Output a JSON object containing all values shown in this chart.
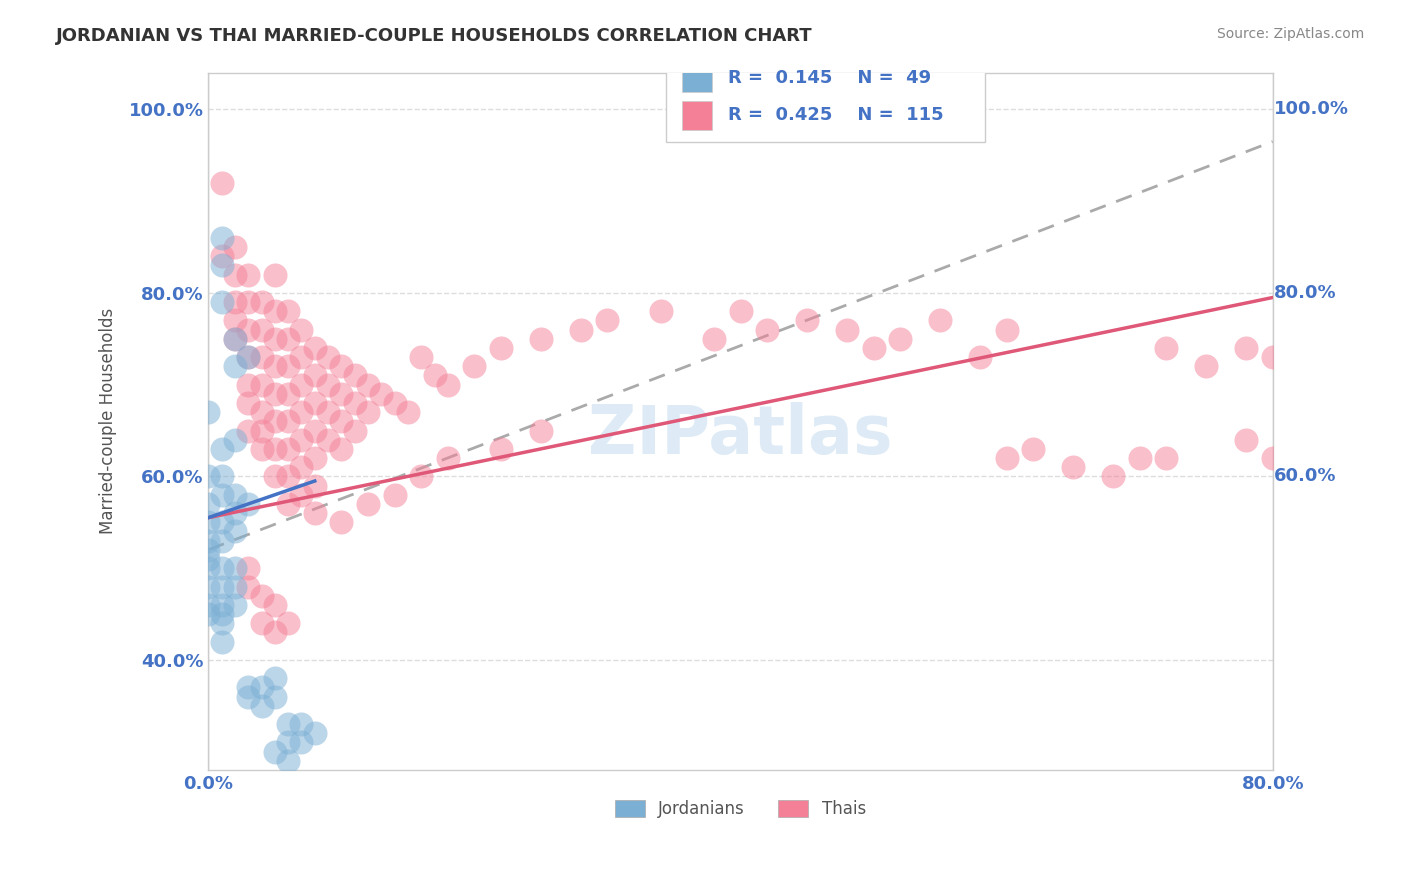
{
  "title": "JORDANIAN VS THAI MARRIED-COUPLE HOUSEHOLDS CORRELATION CHART",
  "source": "Source: ZipAtlas.com",
  "ylabel": "Married-couple Households",
  "x_min": 0.0,
  "x_max": 0.8,
  "y_min": 0.28,
  "y_max": 1.04,
  "x_ticks": [
    0.0,
    0.1,
    0.2,
    0.3,
    0.4,
    0.5,
    0.6,
    0.7,
    0.8
  ],
  "y_ticks": [
    0.4,
    0.6,
    0.8,
    1.0
  ],
  "y_tick_labels": [
    "40.0%",
    "60.0%",
    "80.0%",
    "100.0%"
  ],
  "legend_labels": [
    "Jordanians",
    "Thais"
  ],
  "jordanian_color": "#7bafd4",
  "thai_color": "#f48098",
  "jordanian_R": 0.145,
  "jordanian_N": 49,
  "thai_R": 0.425,
  "thai_N": 115,
  "jordanian_line_color": "#4472c4",
  "thai_line_color": "#e05878",
  "overall_line_color": "#aaaaaa",
  "watermark": "ZIPatlas",
  "background_color": "#ffffff",
  "grid_color": "#dddddd",
  "title_color": "#333333",
  "axis_label_color": "#555555",
  "tick_label_color": "#4472c4",
  "legend_R_color": "#4472c4",
  "jordanian_line": [
    0.0,
    0.555,
    0.08,
    0.595
  ],
  "thai_line": [
    0.0,
    0.555,
    0.8,
    0.795
  ],
  "overall_line": [
    0.0,
    0.52,
    0.8,
    0.965
  ],
  "jordanian_points": [
    [
      0.01,
      0.83
    ],
    [
      0.02,
      0.72
    ],
    [
      0.02,
      0.64
    ],
    [
      0.03,
      0.73
    ],
    [
      0.0,
      0.67
    ],
    [
      0.0,
      0.6
    ],
    [
      0.0,
      0.57
    ],
    [
      0.0,
      0.55
    ],
    [
      0.0,
      0.53
    ],
    [
      0.0,
      0.52
    ],
    [
      0.0,
      0.51
    ],
    [
      0.0,
      0.5
    ],
    [
      0.0,
      0.48
    ],
    [
      0.0,
      0.46
    ],
    [
      0.0,
      0.45
    ],
    [
      0.01,
      0.63
    ],
    [
      0.01,
      0.6
    ],
    [
      0.01,
      0.58
    ],
    [
      0.01,
      0.55
    ],
    [
      0.01,
      0.53
    ],
    [
      0.01,
      0.5
    ],
    [
      0.01,
      0.48
    ],
    [
      0.01,
      0.46
    ],
    [
      0.01,
      0.45
    ],
    [
      0.01,
      0.44
    ],
    [
      0.01,
      0.42
    ],
    [
      0.02,
      0.58
    ],
    [
      0.02,
      0.56
    ],
    [
      0.02,
      0.54
    ],
    [
      0.02,
      0.5
    ],
    [
      0.02,
      0.48
    ],
    [
      0.02,
      0.46
    ],
    [
      0.03,
      0.57
    ],
    [
      0.03,
      0.37
    ],
    [
      0.03,
      0.36
    ],
    [
      0.04,
      0.37
    ],
    [
      0.04,
      0.35
    ],
    [
      0.05,
      0.38
    ],
    [
      0.05,
      0.36
    ],
    [
      0.06,
      0.33
    ],
    [
      0.06,
      0.31
    ],
    [
      0.07,
      0.33
    ],
    [
      0.07,
      0.31
    ],
    [
      0.08,
      0.32
    ],
    [
      0.01,
      0.86
    ],
    [
      0.02,
      0.75
    ],
    [
      0.01,
      0.79
    ],
    [
      0.05,
      0.3
    ],
    [
      0.06,
      0.29
    ]
  ],
  "thai_points": [
    [
      0.01,
      0.92
    ],
    [
      0.01,
      0.84
    ],
    [
      0.02,
      0.85
    ],
    [
      0.02,
      0.82
    ],
    [
      0.02,
      0.79
    ],
    [
      0.02,
      0.77
    ],
    [
      0.02,
      0.75
    ],
    [
      0.03,
      0.82
    ],
    [
      0.03,
      0.79
    ],
    [
      0.03,
      0.76
    ],
    [
      0.03,
      0.73
    ],
    [
      0.03,
      0.7
    ],
    [
      0.03,
      0.68
    ],
    [
      0.03,
      0.65
    ],
    [
      0.04,
      0.79
    ],
    [
      0.04,
      0.76
    ],
    [
      0.04,
      0.73
    ],
    [
      0.04,
      0.7
    ],
    [
      0.04,
      0.67
    ],
    [
      0.04,
      0.65
    ],
    [
      0.04,
      0.63
    ],
    [
      0.05,
      0.82
    ],
    [
      0.05,
      0.78
    ],
    [
      0.05,
      0.75
    ],
    [
      0.05,
      0.72
    ],
    [
      0.05,
      0.69
    ],
    [
      0.05,
      0.66
    ],
    [
      0.05,
      0.63
    ],
    [
      0.05,
      0.6
    ],
    [
      0.06,
      0.78
    ],
    [
      0.06,
      0.75
    ],
    [
      0.06,
      0.72
    ],
    [
      0.06,
      0.69
    ],
    [
      0.06,
      0.66
    ],
    [
      0.06,
      0.63
    ],
    [
      0.06,
      0.6
    ],
    [
      0.06,
      0.57
    ],
    [
      0.07,
      0.76
    ],
    [
      0.07,
      0.73
    ],
    [
      0.07,
      0.7
    ],
    [
      0.07,
      0.67
    ],
    [
      0.07,
      0.64
    ],
    [
      0.07,
      0.61
    ],
    [
      0.07,
      0.58
    ],
    [
      0.08,
      0.74
    ],
    [
      0.08,
      0.71
    ],
    [
      0.08,
      0.68
    ],
    [
      0.08,
      0.65
    ],
    [
      0.08,
      0.62
    ],
    [
      0.08,
      0.59
    ],
    [
      0.09,
      0.73
    ],
    [
      0.09,
      0.7
    ],
    [
      0.09,
      0.67
    ],
    [
      0.09,
      0.64
    ],
    [
      0.1,
      0.72
    ],
    [
      0.1,
      0.69
    ],
    [
      0.1,
      0.66
    ],
    [
      0.1,
      0.63
    ],
    [
      0.11,
      0.71
    ],
    [
      0.11,
      0.68
    ],
    [
      0.11,
      0.65
    ],
    [
      0.12,
      0.7
    ],
    [
      0.12,
      0.67
    ],
    [
      0.13,
      0.69
    ],
    [
      0.14,
      0.68
    ],
    [
      0.15,
      0.67
    ],
    [
      0.16,
      0.73
    ],
    [
      0.17,
      0.71
    ],
    [
      0.18,
      0.7
    ],
    [
      0.2,
      0.72
    ],
    [
      0.22,
      0.74
    ],
    [
      0.25,
      0.75
    ],
    [
      0.28,
      0.76
    ],
    [
      0.3,
      0.77
    ],
    [
      0.34,
      0.78
    ],
    [
      0.38,
      0.75
    ],
    [
      0.4,
      0.78
    ],
    [
      0.42,
      0.76
    ],
    [
      0.45,
      0.77
    ],
    [
      0.48,
      0.76
    ],
    [
      0.5,
      0.74
    ],
    [
      0.52,
      0.75
    ],
    [
      0.55,
      0.77
    ],
    [
      0.58,
      0.73
    ],
    [
      0.6,
      0.76
    ],
    [
      0.6,
      0.62
    ],
    [
      0.62,
      0.63
    ],
    [
      0.65,
      0.61
    ],
    [
      0.68,
      0.6
    ],
    [
      0.7,
      0.62
    ],
    [
      0.72,
      0.74
    ],
    [
      0.72,
      0.62
    ],
    [
      0.75,
      0.72
    ],
    [
      0.78,
      0.74
    ],
    [
      0.78,
      0.64
    ],
    [
      0.8,
      0.73
    ],
    [
      0.8,
      0.62
    ],
    [
      0.03,
      0.5
    ],
    [
      0.03,
      0.48
    ],
    [
      0.04,
      0.47
    ],
    [
      0.04,
      0.44
    ],
    [
      0.05,
      0.46
    ],
    [
      0.05,
      0.43
    ],
    [
      0.06,
      0.44
    ],
    [
      0.08,
      0.56
    ],
    [
      0.1,
      0.55
    ],
    [
      0.12,
      0.57
    ],
    [
      0.14,
      0.58
    ],
    [
      0.16,
      0.6
    ],
    [
      0.18,
      0.62
    ],
    [
      0.22,
      0.63
    ],
    [
      0.25,
      0.65
    ]
  ]
}
